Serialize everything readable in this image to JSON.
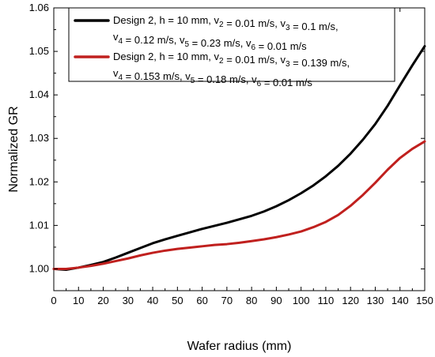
{
  "chart_data": {
    "type": "line",
    "xlabel": "Wafer radius (mm)",
    "ylabel": "Normalized GR",
    "xlim": [
      0,
      150
    ],
    "ylim": [
      0.995,
      1.06
    ],
    "x_ticks": [
      0,
      10,
      20,
      30,
      40,
      50,
      60,
      70,
      80,
      90,
      100,
      110,
      120,
      130,
      140,
      150
    ],
    "y_ticks": [
      1.0,
      1.01,
      1.02,
      1.03,
      1.04,
      1.05,
      1.06
    ],
    "y_tick_labels": [
      "1.00",
      "1.01",
      "1.02",
      "1.03",
      "1.04",
      "1.05",
      "1.06"
    ],
    "grid": false,
    "legend_position": "top-right",
    "series": [
      {
        "name_line1": "Design 2, h = 10 mm, v2 = 0.01 m/s, v3 = 0.1 m/s,",
        "name_line2": "v4 = 0.12 m/s, v5 = 0.23 m/s, v6 = 0.01 m/s",
        "color": "#000000",
        "x": [
          0,
          5,
          10,
          15,
          20,
          25,
          30,
          35,
          40,
          45,
          50,
          55,
          60,
          65,
          70,
          75,
          80,
          85,
          90,
          95,
          100,
          105,
          110,
          115,
          120,
          125,
          130,
          135,
          140,
          145,
          150
        ],
        "y": [
          1.0,
          0.9998,
          1.0003,
          1.0009,
          1.0016,
          1.0026,
          1.0037,
          1.0048,
          1.0059,
          1.0068,
          1.0076,
          1.0084,
          1.0092,
          1.0099,
          1.0106,
          1.0114,
          1.0122,
          1.0132,
          1.0144,
          1.0158,
          1.0174,
          1.0192,
          1.0213,
          1.0237,
          1.0265,
          1.0297,
          1.0333,
          1.0375,
          1.0422,
          1.0468,
          1.0512
        ]
      },
      {
        "name_line1": "Design 2, h = 10 mm, v2 = 0.01 m/s, v3 = 0.139 m/s,",
        "name_line2": "v4 = 0.153 m/s, v5 = 0.18 m/s, v6 = 0.01 m/s",
        "color": "#c0201e",
        "x": [
          0,
          5,
          10,
          15,
          20,
          25,
          30,
          35,
          40,
          45,
          50,
          55,
          60,
          65,
          70,
          75,
          80,
          85,
          90,
          95,
          100,
          105,
          110,
          115,
          120,
          125,
          130,
          135,
          140,
          145,
          150
        ],
        "y": [
          1.0,
          1.0,
          1.0003,
          1.0007,
          1.0012,
          1.0018,
          1.0024,
          1.0031,
          1.0037,
          1.0042,
          1.0046,
          1.0049,
          1.0052,
          1.0055,
          1.0057,
          1.006,
          1.0064,
          1.0068,
          1.0073,
          1.0079,
          1.0086,
          1.0096,
          1.0108,
          1.0124,
          1.0145,
          1.017,
          1.0198,
          1.0228,
          1.0255,
          1.0276,
          1.0293
        ]
      }
    ]
  }
}
